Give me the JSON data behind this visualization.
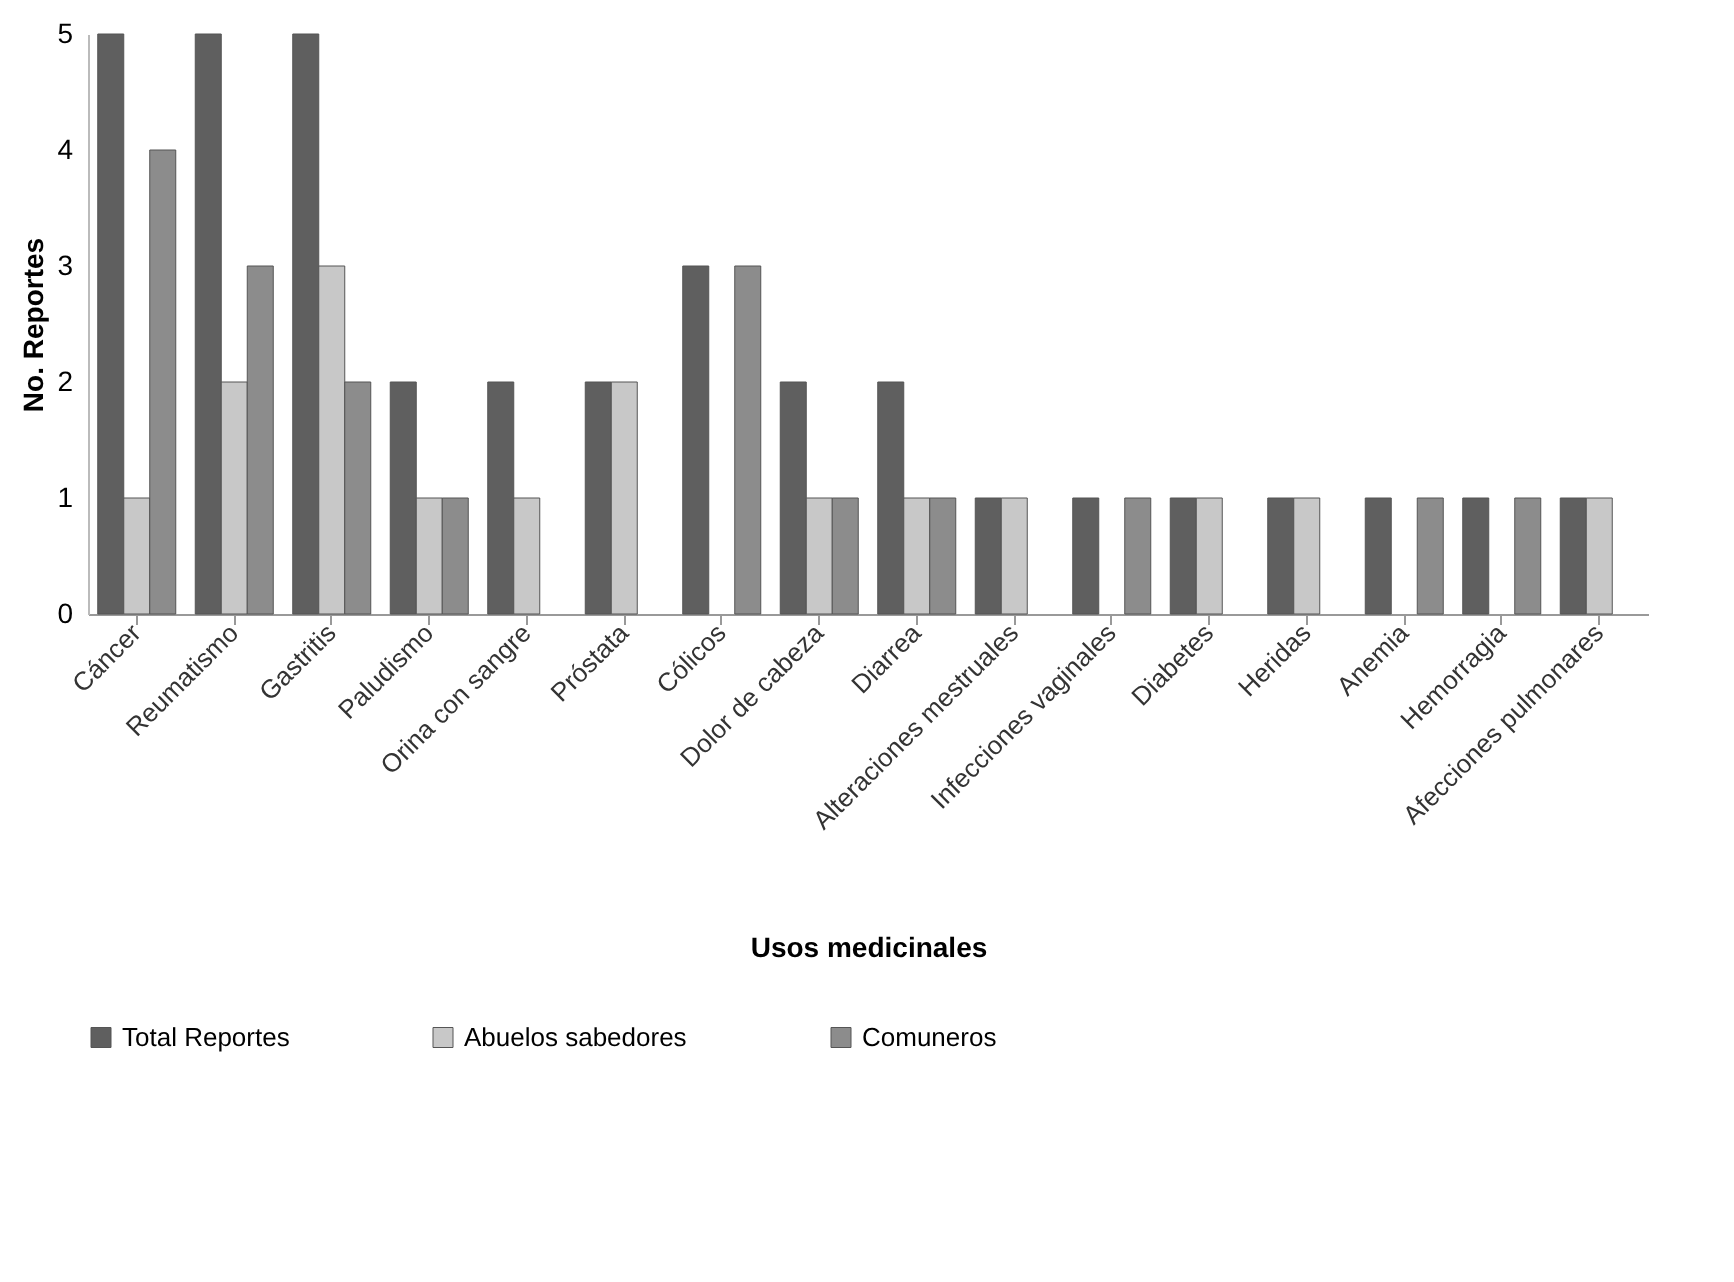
{
  "chart_data": {
    "type": "bar",
    "xlabel": "Usos medicinales",
    "ylabel": "No. Reportes",
    "categories": [
      "Cáncer",
      "Reumatismo",
      "Gastritis",
      "Paludismo",
      "Orina con sangre",
      "Próstata",
      "Cólicos",
      "Dolor de cabeza",
      "Diarrea",
      "Alteraciones mestruales",
      "Infecciones vaginales",
      "Diabetes",
      "Heridas",
      "Anemia",
      "Hemorragia",
      "Afecciones pulmonares"
    ],
    "series": [
      {
        "name": "Total Reportes",
        "color": "#5f5f5f",
        "values": [
          5,
          5,
          5,
          2,
          2,
          2,
          3,
          2,
          2,
          1,
          1,
          1,
          1,
          1,
          1,
          1
        ]
      },
      {
        "name": "Abuelos sabedores",
        "color": "#c8c8c8",
        "values": [
          1,
          2,
          3,
          1,
          1,
          2,
          null,
          1,
          1,
          1,
          null,
          1,
          1,
          null,
          null,
          1
        ]
      },
      {
        "name": "Comuneros",
        "color": "#8c8c8c",
        "values": [
          4,
          3,
          2,
          1,
          null,
          null,
          3,
          1,
          1,
          null,
          1,
          null,
          null,
          1,
          1,
          null
        ]
      }
    ],
    "ylim": [
      0,
      5
    ],
    "yticks": [
      0,
      1,
      2,
      3,
      4,
      5
    ],
    "grid": false,
    "legend": "bottom"
  }
}
